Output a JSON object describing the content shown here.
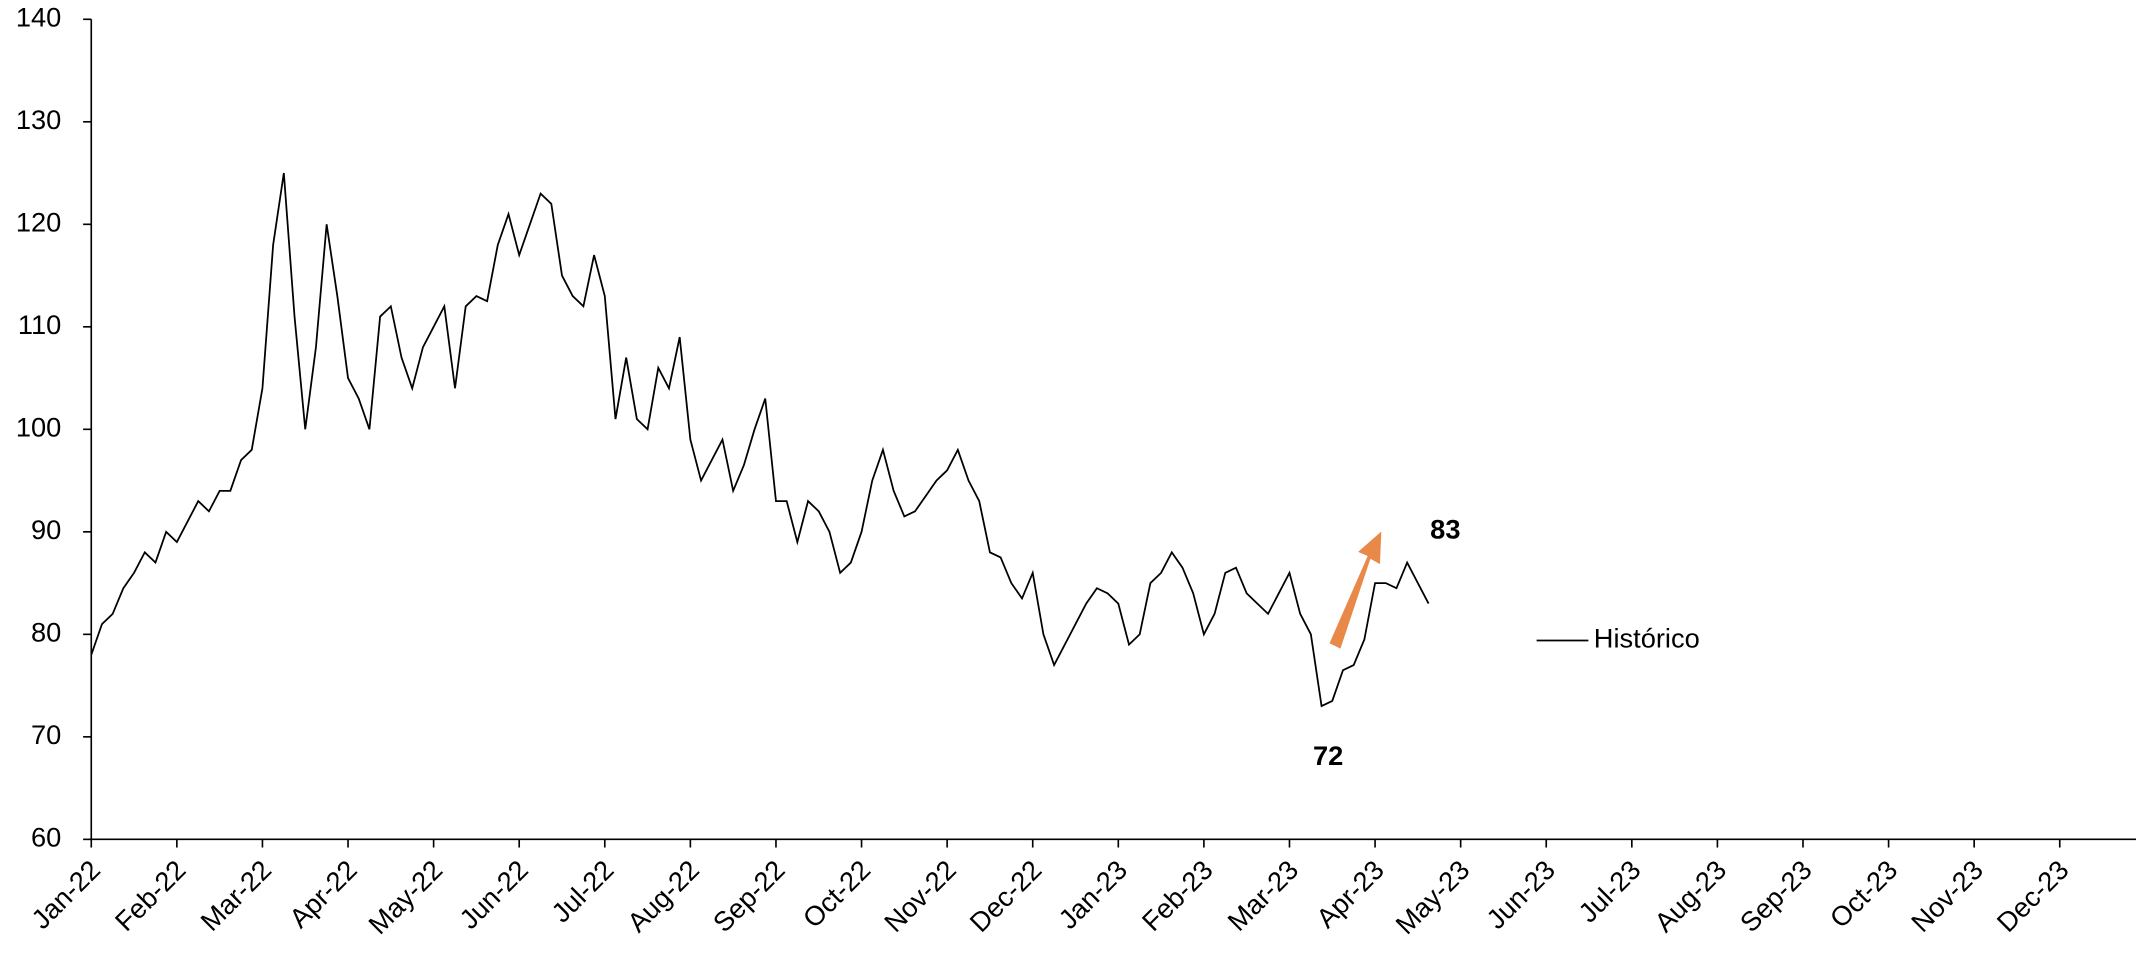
{
  "chart_data": {
    "type": "line",
    "categories": [
      "Jan-22",
      null,
      null,
      null,
      null,
      null,
      null,
      null,
      "Feb-22",
      null,
      null,
      null,
      null,
      null,
      null,
      null,
      "Mar-22",
      null,
      null,
      null,
      null,
      null,
      null,
      null,
      "Apr-22",
      null,
      null,
      null,
      null,
      null,
      null,
      null,
      "May-22",
      null,
      null,
      null,
      null,
      null,
      null,
      null,
      "Jun-22",
      null,
      null,
      null,
      null,
      null,
      null,
      null,
      "Jul-22",
      null,
      null,
      null,
      null,
      null,
      null,
      null,
      "Aug-22",
      null,
      null,
      null,
      null,
      null,
      null,
      null,
      "Sep-22",
      null,
      null,
      null,
      null,
      null,
      null,
      null,
      "Oct-22",
      null,
      null,
      null,
      null,
      null,
      null,
      null,
      "Nov-22",
      null,
      null,
      null,
      null,
      null,
      null,
      null,
      "Dec-22",
      null,
      null,
      null,
      null,
      null,
      null,
      null,
      "Jan-23",
      null,
      null,
      null,
      null,
      null,
      null,
      null,
      "Feb-23",
      null,
      null,
      null,
      null,
      null,
      null,
      null,
      "Mar-23",
      null,
      null,
      null,
      null,
      null,
      null,
      null,
      "Apr-23",
      null,
      null,
      null,
      null,
      null,
      null,
      null,
      "May-23",
      null,
      null,
      null,
      null,
      null,
      null,
      null,
      "Jun-23",
      null,
      null,
      null,
      null,
      null,
      null,
      null,
      "Jul-23",
      null,
      null,
      null,
      null,
      null,
      null,
      null,
      "Aug-23",
      null,
      null,
      null,
      null,
      null,
      null,
      null,
      "Sep-23",
      null,
      null,
      null,
      null,
      null,
      null,
      null,
      "Oct-23",
      null,
      null,
      null,
      null,
      null,
      null,
      null,
      "Nov-23",
      null,
      null,
      null,
      null,
      null,
      null,
      null,
      "Dec-23",
      null,
      null,
      null,
      null,
      null,
      null,
      null
    ],
    "series": [
      {
        "name": "Histórico",
        "color": "#000000",
        "values": [
          78,
          81,
          82,
          84.5,
          86,
          88,
          87,
          90,
          89,
          91,
          93,
          92,
          94,
          94,
          97,
          98,
          104,
          118,
          125,
          111,
          100,
          108,
          120,
          113,
          105,
          103,
          100,
          111,
          112,
          107,
          104,
          108,
          110,
          112,
          104,
          112,
          113,
          112.5,
          118,
          121,
          117,
          120,
          123,
          122,
          115,
          113,
          112,
          117,
          113,
          101,
          107,
          101,
          100,
          106,
          104,
          109,
          99,
          95,
          97,
          99,
          94,
          96.5,
          100,
          103,
          93,
          93,
          89,
          93,
          92,
          90,
          86,
          87,
          90,
          95,
          98,
          94,
          91.5,
          92,
          93.5,
          95,
          96,
          98,
          95,
          93,
          88,
          87.5,
          85,
          83.5,
          86,
          80,
          77,
          79,
          81,
          83,
          84.5,
          84,
          83,
          79,
          80,
          85,
          86,
          88,
          86.5,
          84,
          80,
          82,
          86,
          86.5,
          84,
          83,
          82,
          84,
          86,
          82,
          80,
          73,
          73.5,
          76.5,
          77,
          79.5,
          85,
          85,
          84.5,
          87,
          85,
          83,
          null,
          null,
          null,
          null,
          null,
          null,
          null,
          null,
          null,
          null,
          null,
          null,
          null,
          null,
          null,
          null,
          null,
          null,
          null,
          null,
          null,
          null,
          null,
          null,
          null,
          null,
          null,
          null,
          null,
          null,
          null,
          null,
          null,
          null,
          null,
          null,
          null,
          null,
          null,
          null,
          null,
          null,
          null,
          null,
          null,
          null,
          null,
          null,
          null,
          null,
          null,
          null,
          null,
          null,
          null,
          null,
          null,
          null,
          null,
          null,
          null,
          null,
          null,
          null,
          null,
          null
        ]
      }
    ],
    "ylim": [
      60,
      140
    ],
    "yticks": [
      60,
      70,
      80,
      90,
      100,
      110,
      120,
      130,
      140
    ],
    "annotations": [
      "72",
      "83"
    ],
    "legend": "right"
  }
}
